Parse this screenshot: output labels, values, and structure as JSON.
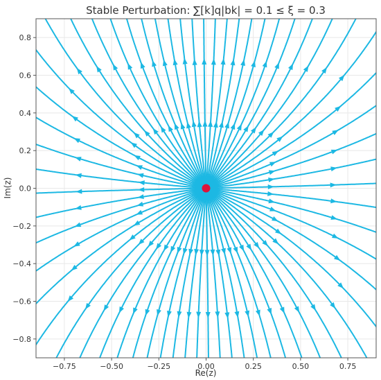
{
  "chart_data": {
    "type": "streamplot",
    "title": "Stable Perturbation: ∑[k]q|bk| = 0.1 ≤ ξ = 0.3",
    "xlabel": "Re(z)",
    "ylabel": "Im(z)",
    "xlim": [
      -0.9,
      0.9
    ],
    "ylim": [
      -0.9,
      0.9
    ],
    "x_ticks": [
      -0.75,
      -0.5,
      -0.25,
      0.0,
      0.25,
      0.5,
      0.75
    ],
    "x_tick_labels": [
      "−0.75",
      "−0.50",
      "−0.25",
      "0.00",
      "0.25",
      "0.50",
      "0.75"
    ],
    "y_ticks": [
      -0.8,
      -0.6,
      -0.4,
      -0.2,
      0.0,
      0.2,
      0.4,
      0.6,
      0.8
    ],
    "y_tick_labels": [
      "−0.8",
      "−0.6",
      "−0.4",
      "−0.2",
      "0.0",
      "0.2",
      "0.4",
      "0.6",
      "0.8"
    ],
    "grid": true,
    "field": "outward radial flow from origin",
    "fixed_point": {
      "x": 0.0,
      "y": 0.0,
      "color": "#dc143c"
    },
    "stream_color": "#1cb8e3"
  }
}
